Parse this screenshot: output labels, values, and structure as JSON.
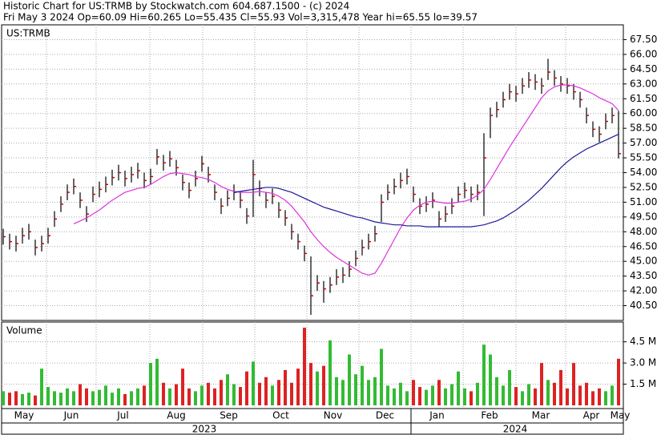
{
  "chart_data": {
    "type": "ohlc",
    "title": "Historic Chart for US:TRMB by Stockwatch.com 604.687.1500 - (c) 2024",
    "subtitle": "Fri May  3 2024  Op=60.09  Hi=60.265  Lo=55.435  Cl=55.93  Vol=3,315,478  Year hi=65.55  lo=39.57",
    "symbol_label": "US:TRMB",
    "volume_label": "Volume",
    "bar_color": "#000000",
    "close_color": "#cc0000",
    "up_color": "#33bb33",
    "down_color": "#dd2222",
    "grid": true,
    "close": [
      47.5,
      47.0,
      46.8,
      47.6,
      48.0,
      46.4,
      46.8,
      47.6,
      49.3,
      50.8,
      52.0,
      52.6,
      51.2,
      49.8,
      51.8,
      52.3,
      52.8,
      53.5,
      54.0,
      53.4,
      53.8,
      54.2,
      53.2,
      53.6,
      55.6,
      55.0,
      55.4,
      54.5,
      53.0,
      52.2,
      53.4,
      54.9,
      53.8,
      52.0,
      50.6,
      51.4,
      52.0,
      51.2,
      49.6,
      53.8,
      52.4,
      51.2,
      51.6,
      50.2,
      49.4,
      48.0,
      47.0,
      45.8,
      41.5,
      42.8,
      42.2,
      42.6,
      43.4,
      43.6,
      44.2,
      45.3,
      46.4,
      47.0,
      47.8,
      51.0,
      52.0,
      52.6,
      53.2,
      53.6,
      51.8,
      50.6,
      50.8,
      51.2,
      49.3,
      49.8,
      50.6,
      51.8,
      52.2,
      51.8,
      52.0,
      55.5,
      59.8,
      60.4,
      61.4,
      62.2,
      62.0,
      62.8,
      63.4,
      63.2,
      62.8,
      64.2,
      63.6,
      63.0,
      62.8,
      62.2,
      61.4,
      59.8,
      58.4,
      57.9,
      59.2,
      59.8,
      55.93
    ],
    "high": [
      48.3,
      47.8,
      47.6,
      48.4,
      48.8,
      47.2,
      47.6,
      48.4,
      50.1,
      51.6,
      52.8,
      53.4,
      52.0,
      50.6,
      52.6,
      53.1,
      53.6,
      54.3,
      54.8,
      54.2,
      54.6,
      55.0,
      54.0,
      54.4,
      56.4,
      55.8,
      56.2,
      55.3,
      53.8,
      53.0,
      54.2,
      55.7,
      54.6,
      52.8,
      51.4,
      52.2,
      52.8,
      52.0,
      50.4,
      55.3,
      53.2,
      52.0,
      52.4,
      51.0,
      50.2,
      48.8,
      47.8,
      46.6,
      45.5,
      43.6,
      43.0,
      43.4,
      44.2,
      44.4,
      45.0,
      46.1,
      47.2,
      47.8,
      48.6,
      51.8,
      52.8,
      53.4,
      54.0,
      54.4,
      52.6,
      51.4,
      51.6,
      52.0,
      50.1,
      50.6,
      51.4,
      52.6,
      53.0,
      52.6,
      52.8,
      58.0,
      60.6,
      61.2,
      62.2,
      63.0,
      62.8,
      63.6,
      64.2,
      64.0,
      63.6,
      65.55,
      64.4,
      63.8,
      63.6,
      63.0,
      62.2,
      60.6,
      59.2,
      58.7,
      60.0,
      60.6,
      60.265
    ],
    "low": [
      46.7,
      46.2,
      46.0,
      46.8,
      47.2,
      45.6,
      46.0,
      46.8,
      48.5,
      50.0,
      51.2,
      51.8,
      50.4,
      49.0,
      51.0,
      51.5,
      52.0,
      52.7,
      53.2,
      52.6,
      53.0,
      53.4,
      52.4,
      52.8,
      54.8,
      54.2,
      54.6,
      53.7,
      52.2,
      51.4,
      52.6,
      54.1,
      53.0,
      51.2,
      49.8,
      50.6,
      51.2,
      50.4,
      48.8,
      49.5,
      51.6,
      50.4,
      50.8,
      49.4,
      48.6,
      47.2,
      46.2,
      45.0,
      39.57,
      42.0,
      40.8,
      41.8,
      42.6,
      42.8,
      43.4,
      44.5,
      45.6,
      46.2,
      47.0,
      49.0,
      51.2,
      51.8,
      52.4,
      52.8,
      51.0,
      49.8,
      50.0,
      50.4,
      48.5,
      49.0,
      49.8,
      51.0,
      51.4,
      51.0,
      51.2,
      49.6,
      57.5,
      59.6,
      60.6,
      61.4,
      61.2,
      62.0,
      62.6,
      62.4,
      62.0,
      63.4,
      62.8,
      62.2,
      62.0,
      61.4,
      60.6,
      59.0,
      57.6,
      57.1,
      58.4,
      59.0,
      55.435
    ],
    "volume": [
      1.0,
      0.9,
      1.0,
      0.8,
      0.9,
      0.7,
      2.6,
      1.3,
      1.0,
      0.9,
      1.2,
      1.0,
      1.5,
      1.2,
      1.0,
      1.1,
      1.4,
      0.9,
      1.2,
      0.8,
      1.0,
      1.2,
      1.4,
      3.0,
      3.3,
      1.6,
      1.2,
      1.5,
      2.6,
      1.2,
      1.0,
      1.4,
      1.6,
      1.2,
      1.8,
      2.2,
      1.5,
      1.3,
      2.4,
      3.1,
      1.6,
      2.0,
      1.4,
      1.8,
      2.5,
      1.6,
      2.6,
      5.5,
      3.0,
      2.4,
      2.8,
      4.6,
      2.0,
      1.8,
      3.6,
      2.2,
      2.8,
      1.8,
      2.0,
      4.0,
      1.4,
      1.2,
      1.6,
      1.0,
      1.8,
      1.3,
      1.1,
      1.4,
      1.8,
      1.2,
      1.5,
      2.4,
      1.2,
      1.0,
      1.6,
      4.3,
      3.6,
      2.0,
      1.4,
      2.5,
      1.3,
      1.0,
      1.5,
      1.2,
      3.0,
      1.8,
      1.6,
      2.5,
      1.2,
      3.0,
      1.4,
      1.6,
      1.0,
      1.2,
      1.0,
      1.4,
      3.3
    ],
    "series": [
      {
        "color": "#dd33dd",
        "values": [
          null,
          null,
          null,
          null,
          null,
          null,
          null,
          null,
          null,
          null,
          null,
          48.8,
          49.1,
          49.4,
          49.8,
          50.2,
          50.7,
          51.2,
          51.6,
          52.0,
          52.2,
          52.4,
          52.5,
          52.8,
          53.2,
          53.6,
          53.9,
          54.0,
          53.9,
          53.8,
          53.6,
          53.5,
          53.3,
          53.0,
          52.6,
          52.3,
          52.1,
          52.0,
          52.0,
          52.0,
          52.1,
          52.0,
          51.9,
          51.6,
          51.2,
          50.6,
          49.8,
          49.0,
          48.0,
          47.2,
          46.5,
          45.9,
          45.4,
          45.0,
          44.6,
          44.2,
          43.8,
          43.6,
          43.8,
          44.8,
          46.0,
          47.2,
          48.4,
          49.4,
          50.2,
          50.7,
          51.0,
          51.1,
          51.0,
          50.9,
          50.9,
          51.0,
          51.1,
          51.3,
          51.7,
          52.3,
          53.3,
          54.4,
          55.5,
          56.6,
          57.6,
          58.6,
          59.6,
          60.6,
          61.6,
          62.3,
          62.7,
          62.9,
          62.9,
          62.8,
          62.6,
          62.3,
          62.0,
          61.6,
          61.3,
          61.0,
          60.3
        ]
      },
      {
        "color": "#1a1a99",
        "values": [
          null,
          null,
          null,
          null,
          null,
          null,
          null,
          null,
          null,
          null,
          null,
          null,
          null,
          null,
          null,
          null,
          null,
          null,
          null,
          null,
          null,
          null,
          null,
          null,
          null,
          null,
          null,
          null,
          null,
          null,
          null,
          null,
          null,
          null,
          null,
          null,
          52.0,
          52.1,
          52.2,
          52.3,
          52.4,
          52.5,
          52.5,
          52.4,
          52.2,
          52.0,
          51.7,
          51.4,
          51.1,
          50.8,
          50.5,
          50.3,
          50.1,
          49.9,
          49.7,
          49.5,
          49.4,
          49.2,
          49.0,
          48.9,
          48.8,
          48.7,
          48.7,
          48.6,
          48.6,
          48.6,
          48.5,
          48.5,
          48.5,
          48.5,
          48.5,
          48.5,
          48.5,
          48.5,
          48.6,
          48.7,
          48.9,
          49.1,
          49.4,
          49.8,
          50.2,
          50.7,
          51.2,
          51.8,
          52.4,
          53.1,
          53.8,
          54.5,
          55.1,
          55.6,
          56.0,
          56.4,
          56.7,
          57.0,
          57.3,
          57.6,
          57.9
        ]
      }
    ],
    "ylim": [
      39,
      69
    ],
    "yticks": [
      {
        "value": 40.5,
        "label": "40.50"
      },
      {
        "value": 42,
        "label": "42.00"
      },
      {
        "value": 43.5,
        "label": "43.50"
      },
      {
        "value": 45,
        "label": "45.00"
      },
      {
        "value": 46.5,
        "label": "46.50"
      },
      {
        "value": 48,
        "label": "48.00"
      },
      {
        "value": 49.5,
        "label": "49.50"
      },
      {
        "value": 51,
        "label": "51.00"
      },
      {
        "value": 52.5,
        "label": "52.50"
      },
      {
        "value": 54,
        "label": "54.00"
      },
      {
        "value": 55.5,
        "label": "55.50"
      },
      {
        "value": 57,
        "label": "57.00"
      },
      {
        "value": 58.5,
        "label": "58.50"
      },
      {
        "value": 60,
        "label": "60.00"
      },
      {
        "value": 61.5,
        "label": "61.50"
      },
      {
        "value": 63,
        "label": "63.00"
      },
      {
        "value": 64.5,
        "label": "64.50"
      },
      {
        "value": 66,
        "label": "66.00"
      },
      {
        "value": 67.5,
        "label": "67.50"
      }
    ],
    "volume_ylim": [
      0,
      5.9
    ],
    "volume_yticks": [
      {
        "value": 1.5,
        "label": "1.5 M"
      },
      {
        "value": 3,
        "label": "3.0 M"
      },
      {
        "value": 4.5,
        "label": "4.5 M"
      }
    ],
    "months": [
      "May",
      "Jun",
      "Jul",
      "Aug",
      "Sep",
      "Oct",
      "Nov",
      "Dec",
      "Jan",
      "Feb",
      "Mar",
      "Apr",
      "May"
    ],
    "years": [
      "2023",
      "2024"
    ]
  }
}
